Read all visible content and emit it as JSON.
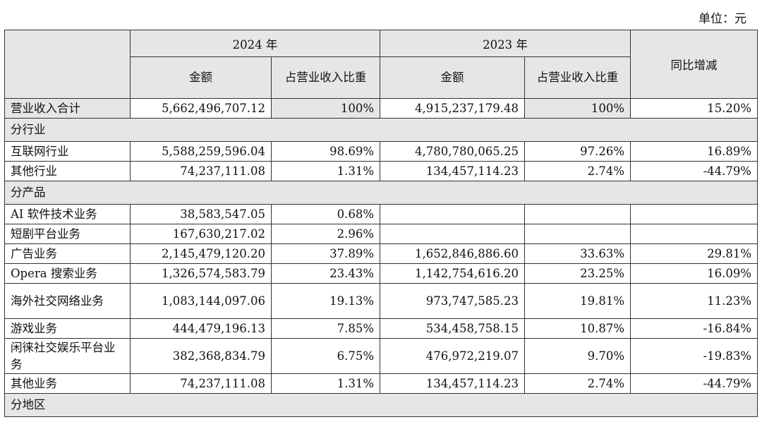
{
  "unit_label": "单位：元",
  "header": {
    "year_2024": "2024 年",
    "year_2023": "2023 年",
    "amount": "金额",
    "ratio": "占营业收入比重",
    "yoy": "同比增减"
  },
  "total": {
    "label": "营业收入合计",
    "amount_2024": "5,662,496,707.12",
    "ratio_2024": "100%",
    "amount_2023": "4,915,237,179.48",
    "ratio_2023": "100%",
    "yoy": "15.20%"
  },
  "sections": {
    "industry": "分行业",
    "product": "分产品",
    "region": "分地区"
  },
  "industry_rows": [
    {
      "label": "互联网行业",
      "amount_2024": "5,588,259,596.04",
      "ratio_2024": "98.69%",
      "amount_2023": "4,780,780,065.25",
      "ratio_2023": "97.26%",
      "yoy": "16.89%"
    },
    {
      "label": "其他行业",
      "amount_2024": "74,237,111.08",
      "ratio_2024": "1.31%",
      "amount_2023": "134,457,114.23",
      "ratio_2023": "2.74%",
      "yoy": "-44.79%"
    }
  ],
  "product_rows": [
    {
      "label": "AI 软件技术业务",
      "amount_2024": "38,583,547.05",
      "ratio_2024": "0.68%",
      "amount_2023": "",
      "ratio_2023": "",
      "yoy": ""
    },
    {
      "label": "短剧平台业务",
      "amount_2024": "167,630,217.02",
      "ratio_2024": "2.96%",
      "amount_2023": "",
      "ratio_2023": "",
      "yoy": ""
    },
    {
      "label": "广告业务",
      "amount_2024": "2,145,479,120.20",
      "ratio_2024": "37.89%",
      "amount_2023": "1,652,846,886.60",
      "ratio_2023": "33.63%",
      "yoy": "29.81%"
    },
    {
      "label": "Opera 搜索业务",
      "amount_2024": "1,326,574,583.79",
      "ratio_2024": "23.43%",
      "amount_2023": "1,142,754,616.20",
      "ratio_2023": "23.25%",
      "yoy": "16.09%"
    },
    {
      "label": "海外社交网络业务",
      "amount_2024": "1,083,144,097.06",
      "ratio_2024": "19.13%",
      "amount_2023": "973,747,585.23",
      "ratio_2023": "19.81%",
      "yoy": "11.23%"
    },
    {
      "label": "游戏业务",
      "amount_2024": "444,479,196.13",
      "ratio_2024": "7.85%",
      "amount_2023": "534,458,758.15",
      "ratio_2023": "10.87%",
      "yoy": "-16.84%"
    },
    {
      "label": "闲徕社交娱乐平台业务",
      "amount_2024": "382,368,834.79",
      "ratio_2024": "6.75%",
      "amount_2023": "476,972,219.07",
      "ratio_2023": "9.70%",
      "yoy": "-19.83%"
    },
    {
      "label": "其他业务",
      "amount_2024": "74,237,111.08",
      "ratio_2024": "1.31%",
      "amount_2023": "134,457,114.23",
      "ratio_2023": "2.74%",
      "yoy": "-44.79%"
    }
  ]
}
